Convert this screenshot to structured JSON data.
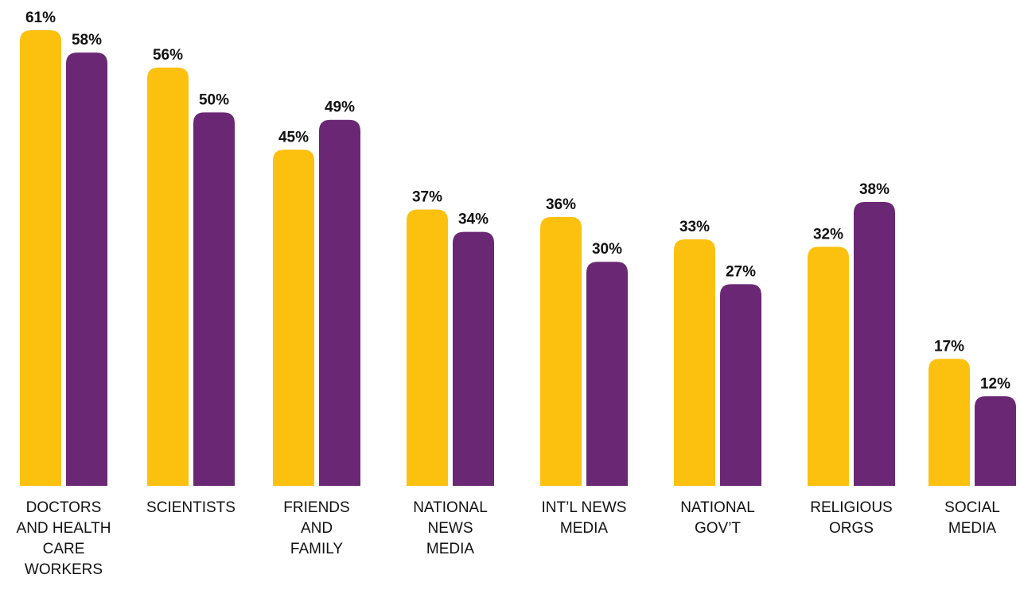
{
  "chart_data": {
    "type": "bar",
    "categories": [
      [
        "DOCTORS",
        "AND HEALTH",
        "CARE",
        "WORKERS"
      ],
      [
        "SCIENTISTS"
      ],
      [
        "FRIENDS",
        "AND",
        "FAMILY"
      ],
      [
        "NATIONAL",
        "NEWS",
        "MEDIA"
      ],
      [
        "INT’L NEWS",
        "MEDIA"
      ],
      [
        "NATIONAL",
        "GOV’T"
      ],
      [
        "RELIGIOUS",
        "ORGS"
      ],
      [
        "SOCIAL",
        "MEDIA"
      ]
    ],
    "series": [
      {
        "color": "#FCC10F",
        "values": [
          61,
          56,
          45,
          37,
          36,
          33,
          32,
          17
        ],
        "labels": [
          "61%",
          "56%",
          "45%",
          "37%",
          "36%",
          "33%",
          "32%",
          "17%"
        ]
      },
      {
        "color": "#6A2874",
        "values": [
          58,
          50,
          49,
          34,
          30,
          27,
          38,
          12
        ],
        "labels": [
          "58%",
          "50%",
          "49%",
          "34%",
          "30%",
          "27%",
          "38%",
          "12%"
        ]
      }
    ],
    "ylim": [
      0,
      61
    ],
    "grid": false,
    "title": "",
    "xlabel": "",
    "ylabel": ""
  }
}
